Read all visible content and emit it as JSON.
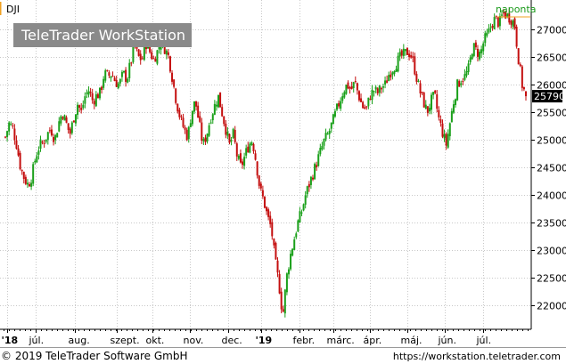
{
  "header": {
    "symbol": "DJI",
    "interval": "naponta",
    "logo_text": "TeleTrader WorkStation"
  },
  "footer": {
    "copyright": "© 2019 TeleTrader Software GmbH",
    "url": "https://workstation.teletrader.com"
  },
  "colors": {
    "up": "#1aa01a",
    "down": "#c40f0f",
    "grid": "#c8c8c8",
    "last_price_label": "#000000",
    "interval_label": "#1a9a1a",
    "interval_marker": "#f0a020"
  },
  "chart_data": {
    "type": "candlestick",
    "title": "DJI",
    "x_tick_labels": [
      "'18",
      "júl.",
      "aug.",
      "szept.",
      "okt.",
      "nov.",
      "dec.",
      "'19",
      "febr.",
      "márc.",
      "ápr.",
      "máj.",
      "jún.",
      "júl."
    ],
    "y_ticks": [
      22000,
      22500,
      23000,
      23500,
      24000,
      24500,
      25000,
      25500,
      26000,
      26500,
      27000
    ],
    "ylim": [
      21600,
      27500
    ],
    "last_value": 25790,
    "last_value_label": "25790",
    "grid": true,
    "approx_closes": [
      25050,
      25300,
      25200,
      24900,
      24500,
      24300,
      24180,
      24350,
      24700,
      24900,
      24950,
      25100,
      25200,
      25000,
      25300,
      25500,
      25300,
      25100,
      25400,
      25650,
      25500,
      25800,
      25900,
      25700,
      25800,
      25850,
      26200,
      26150,
      26200,
      26050,
      26000,
      26200,
      26100,
      26400,
      26700,
      26500,
      26450,
      26750,
      26600,
      26450,
      26600,
      26800,
      26650,
      26500,
      26100,
      25700,
      25400,
      25200,
      25050,
      25500,
      25700,
      25300,
      24900,
      25100,
      25400,
      25600,
      25800,
      25500,
      25200,
      24900,
      25100,
      24700,
      24500,
      24700,
      24900,
      25000,
      24600,
      24100,
      23900,
      23600,
      23400,
      22800,
      22400,
      21800,
      22500,
      22900,
      23200,
      23500,
      23700,
      24000,
      24200,
      24400,
      24600,
      24800,
      25000,
      25100,
      25300,
      25500,
      25700,
      25900,
      26000,
      25900,
      26050,
      25800,
      25600,
      25550,
      25800,
      25900,
      25850,
      25950,
      26000,
      26200,
      26300,
      26400,
      26500,
      26550,
      26600,
      26500,
      26200,
      25900,
      25700,
      25500,
      25700,
      25800,
      25400,
      25150,
      24900,
      25300,
      25700,
      26000,
      26100,
      26150,
      26300,
      26700,
      26600,
      26550,
      26800,
      26900,
      27100,
      27200,
      27100,
      27300,
      27250,
      27200,
      27100,
      26500,
      26000,
      25790
    ]
  }
}
